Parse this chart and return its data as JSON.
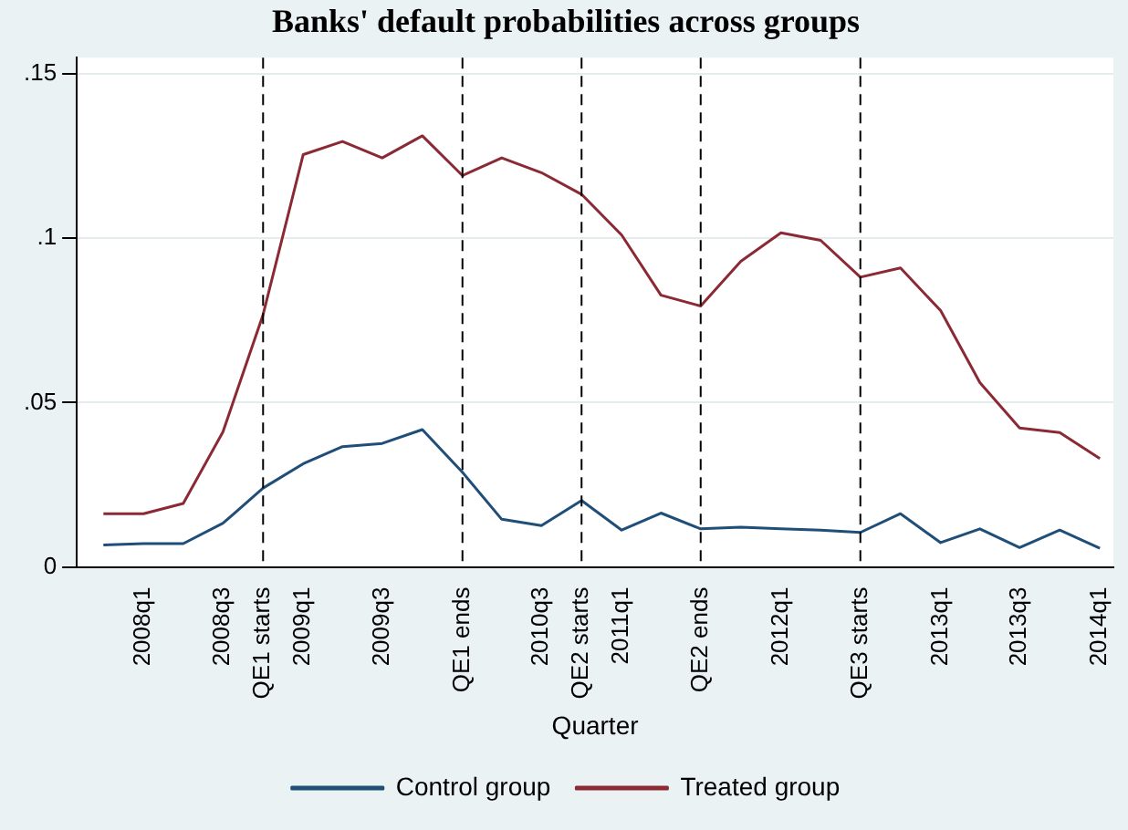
{
  "chart_data": {
    "type": "line",
    "title": "Banks' default probabilities across groups",
    "xlabel": "Quarter",
    "x": [
      "2007-10",
      "2008-01",
      "2008-04",
      "2008-07",
      "2008-10",
      "2009-01",
      "2009-04",
      "2009-07",
      "2009-10",
      "2010-01",
      "2010-04",
      "2010-07",
      "2010-10",
      "2011-01",
      "2011-04",
      "2011-07",
      "2011-10",
      "2012-01",
      "2012-04",
      "2012-07",
      "2012-10",
      "2013-01",
      "2013-04",
      "2013-07",
      "2013-10",
      "2014-01"
    ],
    "series": [
      {
        "name": "Control group",
        "color": "#1f4e79",
        "values": [
          0.0067,
          0.0071,
          0.0071,
          0.0133,
          0.024,
          0.0314,
          0.0366,
          0.0376,
          0.0418,
          0.0288,
          0.0145,
          0.0126,
          0.0202,
          0.0112,
          0.0164,
          0.0116,
          0.0121,
          0.0116,
          0.0112,
          0.0105,
          0.0162,
          0.0074,
          0.0116,
          0.0059,
          0.0112,
          0.0057
        ]
      },
      {
        "name": "Treated group",
        "color": "#8b2a35",
        "values": [
          0.0162,
          0.0162,
          0.0193,
          0.0411,
          0.0768,
          0.1255,
          0.1295,
          0.1245,
          0.1312,
          0.1191,
          0.1245,
          0.12,
          0.1134,
          0.101,
          0.0827,
          0.0794,
          0.093,
          0.1017,
          0.0994,
          0.0882,
          0.091,
          0.078,
          0.0561,
          0.0423,
          0.0409,
          0.033
        ]
      }
    ],
    "ylim": [
      0,
      0.155
    ],
    "yticks": [
      0,
      {
        "value": 0.05,
        "label": ".05"
      },
      {
        "value": 0.1,
        "label": ".1"
      },
      {
        "value": 0.15,
        "label": ".15"
      }
    ],
    "xlim": [
      "2007-08",
      "2014-02"
    ],
    "xticks": [
      {
        "value": "2008-01",
        "label": "2008q1"
      },
      {
        "value": "2008-07",
        "label": "2008q3"
      },
      {
        "value": "2009-01",
        "label": "2009q1"
      },
      {
        "value": "2009-07",
        "label": "2009q3"
      },
      {
        "value": "2010-07",
        "label": "2010q3"
      },
      {
        "value": "2011-01",
        "label": "2011q1"
      },
      {
        "value": "2012-01",
        "label": "2012q1"
      },
      {
        "value": "2013-01",
        "label": "2013q1"
      },
      {
        "value": "2013-07",
        "label": "2013q3"
      },
      {
        "value": "2014-01",
        "label": "2014q1"
      }
    ],
    "ref_lines": [
      {
        "axis": "x",
        "value": "2008-10",
        "label": "QE1 starts",
        "line_style": "dashed"
      },
      {
        "axis": "x",
        "value": "2010-01",
        "label": "QE1 ends",
        "line_style": "dashed"
      },
      {
        "axis": "x",
        "value": "2010-10",
        "label": "QE2 starts",
        "line_style": "dashed"
      },
      {
        "axis": "x",
        "value": "2011-07",
        "label": "QE2 ends",
        "line_style": "dashed"
      },
      {
        "axis": "x",
        "value": "2012-07",
        "label": "QE3 starts",
        "line_style": "dashed"
      }
    ],
    "grid": "y",
    "legend": "bottom",
    "marker": "none",
    "line_style": "solid"
  }
}
